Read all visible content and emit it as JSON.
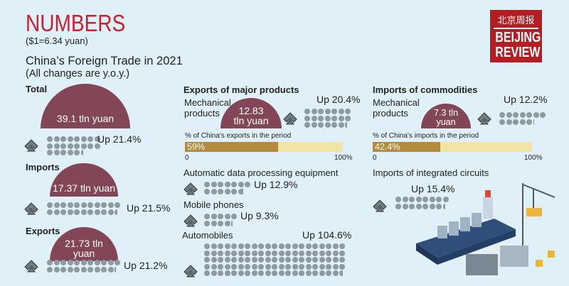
{
  "header": {
    "section": "NUMBERS",
    "rate": "($1=6.34 yuan)",
    "title": "China’s Foreign Trade in 2021",
    "note": "(All changes are y.o.y.)"
  },
  "logo": {
    "cn": "北京周报",
    "line1": "BEIJING",
    "line2": "REVIEW"
  },
  "totals": [
    {
      "label": "Total",
      "amount": "39.1 tln yuan",
      "change": "Up 21.4%",
      "value": 21.4
    },
    {
      "label": "Imports",
      "amount": "17.37 tln yuan",
      "change": "Up 21.5%",
      "value": 21.5
    },
    {
      "label": "Exports",
      "amount": "21.73 tln yuan",
      "change": "Up 21.2%",
      "value": 21.2
    }
  ],
  "exports": {
    "heading": "Exports of major products",
    "mechanical": {
      "label": "Mechanical products",
      "amount": "12.83 tln yuan",
      "change": "Up 20.4%",
      "value": 20.4,
      "share_label": "% of China's exports in the period",
      "share": 59,
      "share_text": "59%",
      "min": "0",
      "max": "100%"
    },
    "items": [
      {
        "label": "Automatic data processing equipment",
        "change": "Up 12.9%",
        "value": 12.9
      },
      {
        "label": "Mobile phones",
        "change": "Up 9.3%",
        "value": 9.3
      },
      {
        "label": "Automobiles",
        "change": "Up 104.6%",
        "value": 104.6
      }
    ]
  },
  "imports": {
    "heading": "Imports of commodities",
    "mechanical": {
      "label": "Mechanical products",
      "amount": "7.3 tln yuan",
      "change": "Up 12.2%",
      "value": 12.2,
      "share_label": "% of China's imports in the period",
      "share": 42.4,
      "share_text": "42.4%",
      "min": "0",
      "max": "100%"
    },
    "circuits": {
      "label": "Imports of integrated circuits",
      "change": "Up 15.4%",
      "value": 15.4
    }
  },
  "colors": {
    "red": "#c8202f",
    "maroon": "#834656",
    "dot": "#8e9aa0",
    "bar": "#b48a3c",
    "track": "#f2e4a4"
  }
}
